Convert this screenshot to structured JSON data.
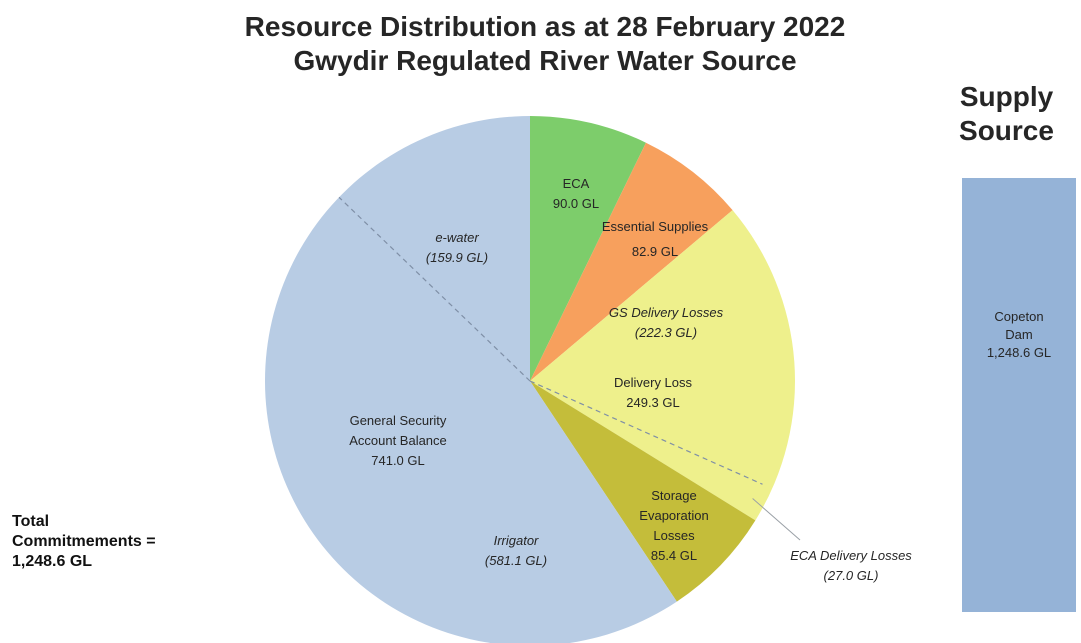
{
  "title": {
    "line1": "Resource Distribution as at 28 February 2022",
    "line2": "Gwydir Regulated River Water Source"
  },
  "supply": {
    "heading_line1": "Supply",
    "heading_line2": "Source",
    "bar_label": [
      "Copeton",
      "Dam",
      "1,248.6 GL"
    ],
    "bar_color": "#95b3d7"
  },
  "total": {
    "line1": "Total",
    "line2": "Commitmements =",
    "line3": "1,248.6 GL"
  },
  "chart_data": [
    {
      "type": "pie",
      "title": "Resource Distribution as at 28 February 2022 Gwydir Regulated River Water Source",
      "unit": "GL",
      "total": 1248.6,
      "start_angle_deg": 0,
      "direction": "clockwise",
      "slices": [
        {
          "name": "ECA",
          "value": 90.0,
          "value_label": "90.0 GL",
          "color": "#7dcd6b"
        },
        {
          "name": "Essential Supplies",
          "value": 82.9,
          "value_label": "82.9 GL",
          "color": "#f7a05d"
        },
        {
          "name": "Delivery Loss",
          "value": 249.3,
          "value_label": "249.3 GL",
          "color": "#eef08c"
        },
        {
          "name": "Storage Evaporation Losses",
          "value": 85.4,
          "value_label": "85.4 GL",
          "color": "#c4bd3a"
        },
        {
          "name": "General Security Account Balance",
          "value": 741.0,
          "value_label": "741.0 GL",
          "color": "#b8cce4"
        }
      ],
      "sub_divisions": [
        {
          "name": "GS Delivery Losses",
          "value": 222.3,
          "value_label": "(222.3 GL)",
          "parent": "Delivery Loss"
        },
        {
          "name": "ECA Delivery Losses",
          "value": 27.0,
          "value_label": "(27.0 GL)",
          "parent": "Delivery Loss"
        },
        {
          "name": "Irrigator",
          "value": 581.1,
          "value_label": "(581.1 GL)",
          "parent": "General Security Account Balance"
        },
        {
          "name": "e-water",
          "value": 159.9,
          "value_label": "(159.9 GL)",
          "parent": "General Security Account Balance"
        }
      ]
    },
    {
      "type": "bar",
      "title": "Supply Source",
      "categories": [
        "Copeton Dam"
      ],
      "values": [
        1248.6
      ],
      "value_labels": [
        "1,248.6 GL"
      ],
      "color": "#95b3d7"
    }
  ]
}
